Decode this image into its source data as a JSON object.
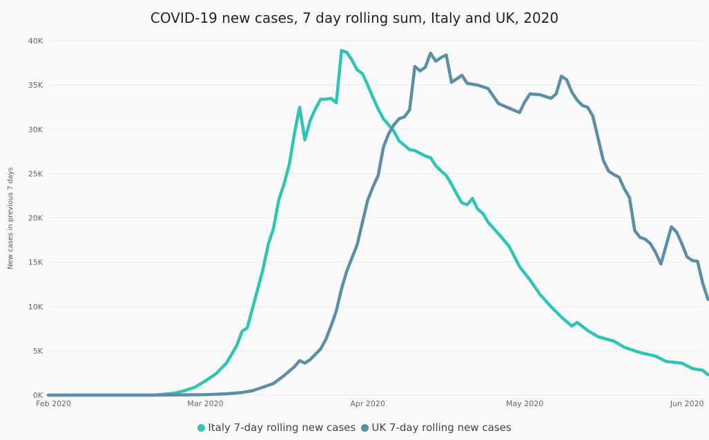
{
  "chart_data": {
    "type": "line",
    "title": "COVID-19 new cases, 7 day rolling sum, Italy and UK, 2020",
    "ylabel": "New cases in previous 7 days",
    "xlabel": "",
    "x_ticks": [
      {
        "date": "2020-02-01",
        "label": "Feb 2020"
      },
      {
        "date": "2020-03-01",
        "label": "Mar 2020"
      },
      {
        "date": "2020-04-01",
        "label": "Apr 2020"
      },
      {
        "date": "2020-05-01",
        "label": "May 2020"
      },
      {
        "date": "2020-06-01",
        "label": "Jun 2020"
      }
    ],
    "y_ticks": [
      {
        "value": 0,
        "label": "0K"
      },
      {
        "value": 5000,
        "label": "5K"
      },
      {
        "value": 10000,
        "label": "10K"
      },
      {
        "value": 15000,
        "label": "15K"
      },
      {
        "value": 20000,
        "label": "20K"
      },
      {
        "value": 25000,
        "label": "25K"
      },
      {
        "value": 30000,
        "label": "30K"
      },
      {
        "value": 35000,
        "label": "35K"
      },
      {
        "value": 40000,
        "label": "40K"
      }
    ],
    "xlim": [
      "2020-01-31",
      "2020-06-04"
    ],
    "ylim": [
      0,
      40000
    ],
    "grid": true,
    "legend_position": "bottom-center",
    "series": [
      {
        "name": "Italy 7-day rolling new cases",
        "color": "#2ec4b6",
        "points": [
          [
            "2020-01-31",
            0
          ],
          [
            "2020-02-10",
            0
          ],
          [
            "2020-02-20",
            0
          ],
          [
            "2020-02-22",
            100
          ],
          [
            "2020-02-24",
            200
          ],
          [
            "2020-02-26",
            500
          ],
          [
            "2020-02-28",
            900
          ],
          [
            "2020-03-01",
            1600
          ],
          [
            "2020-03-03",
            2400
          ],
          [
            "2020-03-05",
            3600
          ],
          [
            "2020-03-07",
            5600
          ],
          [
            "2020-03-08",
            7200
          ],
          [
            "2020-03-09",
            7600
          ],
          [
            "2020-03-10",
            9800
          ],
          [
            "2020-03-11",
            12000
          ],
          [
            "2020-03-12",
            14200
          ],
          [
            "2020-03-13",
            17000
          ],
          [
            "2020-03-14",
            18800
          ],
          [
            "2020-03-15",
            22000
          ],
          [
            "2020-03-16",
            23800
          ],
          [
            "2020-03-17",
            26000
          ],
          [
            "2020-03-18",
            29500
          ],
          [
            "2020-03-19",
            32500
          ],
          [
            "2020-03-20",
            28800
          ],
          [
            "2020-03-21",
            31000
          ],
          [
            "2020-03-22",
            32300
          ],
          [
            "2020-03-23",
            33400
          ],
          [
            "2020-03-24",
            33400
          ],
          [
            "2020-03-25",
            33500
          ],
          [
            "2020-03-26",
            33000
          ],
          [
            "2020-03-27",
            38900
          ],
          [
            "2020-03-28",
            38700
          ],
          [
            "2020-03-29",
            37800
          ],
          [
            "2020-03-30",
            36700
          ],
          [
            "2020-03-31",
            36300
          ],
          [
            "2020-04-01",
            35000
          ],
          [
            "2020-04-02",
            33600
          ],
          [
            "2020-04-03",
            32300
          ],
          [
            "2020-04-04",
            31200
          ],
          [
            "2020-04-05",
            30500
          ],
          [
            "2020-04-06",
            29800
          ],
          [
            "2020-04-07",
            28700
          ],
          [
            "2020-04-08",
            28200
          ],
          [
            "2020-04-09",
            27700
          ],
          [
            "2020-04-10",
            27600
          ],
          [
            "2020-04-11",
            27300
          ],
          [
            "2020-04-12",
            27000
          ],
          [
            "2020-04-13",
            26800
          ],
          [
            "2020-04-14",
            25900
          ],
          [
            "2020-04-15",
            25300
          ],
          [
            "2020-04-16",
            24800
          ],
          [
            "2020-04-17",
            23800
          ],
          [
            "2020-04-18",
            22700
          ],
          [
            "2020-04-19",
            21700
          ],
          [
            "2020-04-20",
            21500
          ],
          [
            "2020-04-21",
            22200
          ],
          [
            "2020-04-22",
            21000
          ],
          [
            "2020-04-23",
            20500
          ],
          [
            "2020-04-24",
            19500
          ],
          [
            "2020-04-26",
            18200
          ],
          [
            "2020-04-28",
            16800
          ],
          [
            "2020-04-30",
            14500
          ],
          [
            "2020-05-02",
            13000
          ],
          [
            "2020-05-04",
            11300
          ],
          [
            "2020-05-06",
            10000
          ],
          [
            "2020-05-08",
            8800
          ],
          [
            "2020-05-10",
            7800
          ],
          [
            "2020-05-11",
            8200
          ],
          [
            "2020-05-13",
            7300
          ],
          [
            "2020-05-15",
            6600
          ],
          [
            "2020-05-18",
            6100
          ],
          [
            "2020-05-20",
            5400
          ],
          [
            "2020-05-23",
            4800
          ],
          [
            "2020-05-26",
            4400
          ],
          [
            "2020-05-28",
            3800
          ],
          [
            "2020-05-31",
            3600
          ],
          [
            "2020-06-02",
            3000
          ],
          [
            "2020-06-04",
            2800
          ],
          [
            "2020-06-05",
            2300
          ]
        ]
      },
      {
        "name": "UK 7-day rolling new cases",
        "color": "#5b8fa8",
        "points": [
          [
            "2020-01-31",
            0
          ],
          [
            "2020-02-20",
            0
          ],
          [
            "2020-03-01",
            50
          ],
          [
            "2020-03-05",
            150
          ],
          [
            "2020-03-08",
            300
          ],
          [
            "2020-03-10",
            500
          ],
          [
            "2020-03-12",
            900
          ],
          [
            "2020-03-14",
            1300
          ],
          [
            "2020-03-16",
            2200
          ],
          [
            "2020-03-18",
            3200
          ],
          [
            "2020-03-19",
            3900
          ],
          [
            "2020-03-20",
            3600
          ],
          [
            "2020-03-21",
            4000
          ],
          [
            "2020-03-22",
            4600
          ],
          [
            "2020-03-23",
            5200
          ],
          [
            "2020-03-24",
            6300
          ],
          [
            "2020-03-25",
            7800
          ],
          [
            "2020-03-26",
            9500
          ],
          [
            "2020-03-27",
            12000
          ],
          [
            "2020-03-28",
            14000
          ],
          [
            "2020-03-29",
            15500
          ],
          [
            "2020-03-30",
            17000
          ],
          [
            "2020-03-31",
            19500
          ],
          [
            "2020-04-01",
            22000
          ],
          [
            "2020-04-02",
            23500
          ],
          [
            "2020-04-03",
            24800
          ],
          [
            "2020-04-04",
            28000
          ],
          [
            "2020-04-05",
            29500
          ],
          [
            "2020-04-06",
            30500
          ],
          [
            "2020-04-07",
            31200
          ],
          [
            "2020-04-08",
            31400
          ],
          [
            "2020-04-09",
            32200
          ],
          [
            "2020-04-10",
            37100
          ],
          [
            "2020-04-11",
            36600
          ],
          [
            "2020-04-12",
            37000
          ],
          [
            "2020-04-13",
            38600
          ],
          [
            "2020-04-14",
            37700
          ],
          [
            "2020-04-15",
            38100
          ],
          [
            "2020-04-16",
            38400
          ],
          [
            "2020-04-17",
            35300
          ],
          [
            "2020-04-18",
            35700
          ],
          [
            "2020-04-19",
            36100
          ],
          [
            "2020-04-20",
            35200
          ],
          [
            "2020-04-22",
            35000
          ],
          [
            "2020-04-24",
            34600
          ],
          [
            "2020-04-26",
            32900
          ],
          [
            "2020-04-28",
            32400
          ],
          [
            "2020-04-30",
            31900
          ],
          [
            "2020-05-01",
            33100
          ],
          [
            "2020-05-02",
            34000
          ],
          [
            "2020-05-04",
            33900
          ],
          [
            "2020-05-06",
            33500
          ],
          [
            "2020-05-07",
            34000
          ],
          [
            "2020-05-08",
            36000
          ],
          [
            "2020-05-09",
            35600
          ],
          [
            "2020-05-10",
            34200
          ],
          [
            "2020-05-11",
            33300
          ],
          [
            "2020-05-12",
            32700
          ],
          [
            "2020-05-13",
            32500
          ],
          [
            "2020-05-14",
            31500
          ],
          [
            "2020-05-15",
            29000
          ],
          [
            "2020-05-16",
            26500
          ],
          [
            "2020-05-17",
            25300
          ],
          [
            "2020-05-18",
            24900
          ],
          [
            "2020-05-19",
            24600
          ],
          [
            "2020-05-20",
            23300
          ],
          [
            "2020-05-21",
            22300
          ],
          [
            "2020-05-22",
            18600
          ],
          [
            "2020-05-23",
            17800
          ],
          [
            "2020-05-24",
            17600
          ],
          [
            "2020-05-25",
            17100
          ],
          [
            "2020-05-26",
            16100
          ],
          [
            "2020-05-27",
            14800
          ],
          [
            "2020-05-28",
            16900
          ],
          [
            "2020-05-29",
            19000
          ],
          [
            "2020-05-30",
            18400
          ],
          [
            "2020-05-31",
            17100
          ],
          [
            "2020-06-01",
            15600
          ],
          [
            "2020-06-02",
            15200
          ],
          [
            "2020-06-03",
            15100
          ],
          [
            "2020-06-04",
            12600
          ],
          [
            "2020-06-05",
            10800
          ]
        ]
      }
    ]
  }
}
